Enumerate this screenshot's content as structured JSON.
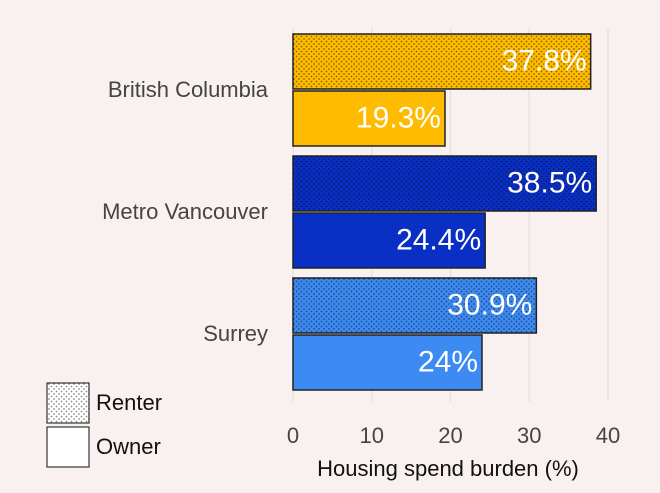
{
  "chart_data": {
    "type": "bar",
    "orientation": "horizontal",
    "categories": [
      "British Columbia",
      "Metro Vancouver",
      "Surrey"
    ],
    "category_colors": [
      "#ffbb00",
      "#0a2fc4",
      "#3d8bf2"
    ],
    "series": [
      {
        "name": "Renter",
        "pattern": "dots",
        "values": [
          37.8,
          38.5,
          30.9
        ],
        "value_labels": [
          "37.8%",
          "38.5%",
          "30.9%"
        ]
      },
      {
        "name": "Owner",
        "values": [
          19.3,
          24.4,
          24
        ],
        "value_labels": [
          "19.3%",
          "24.4%",
          "24%"
        ]
      }
    ],
    "xlabel": "Housing spend burden (%)",
    "xlim": [
      0,
      40
    ],
    "xticks": [
      0,
      10,
      20,
      30,
      40
    ],
    "grid": true,
    "legend": "bottom-left"
  }
}
